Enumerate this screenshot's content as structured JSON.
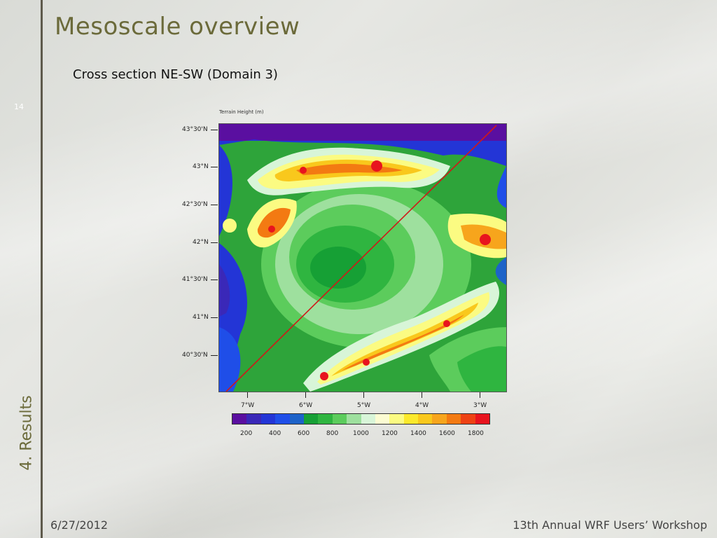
{
  "slide": {
    "title": "Mesoscale overview",
    "subtitle": "Cross section NE-SW (Domain 3)",
    "slide_number": "14",
    "section": "4. Results",
    "date": "6/27/2012",
    "event": "13th Annual WRF Users’ Workshop"
  },
  "figure": {
    "title": "Terrain Height   (m)",
    "y_ticks": [
      "43°30'N",
      "43°N",
      "42°30'N",
      "42°N",
      "41°30'N",
      "41°N",
      "40°30'N"
    ],
    "x_ticks": [
      "7°W",
      "6°W",
      "5°W",
      "4°W",
      "3°W"
    ],
    "colorbar_labels": [
      "200",
      "400",
      "600",
      "800",
      "1000",
      "1200",
      "1400",
      "1600",
      "1800"
    ],
    "colorbar_colors": [
      "#5a0fa0",
      "#3a28b8",
      "#2335d6",
      "#1f4ee8",
      "#1d63c8",
      "#16a035",
      "#2fb540",
      "#5ccc5c",
      "#9ee09e",
      "#d8f5d8",
      "#fcfcd2",
      "#fbfb82",
      "#fbe92c",
      "#f9c81c",
      "#f7a51c",
      "#f37a12",
      "#ee4214",
      "#e8141e"
    ],
    "line_color": "#d01818"
  }
}
